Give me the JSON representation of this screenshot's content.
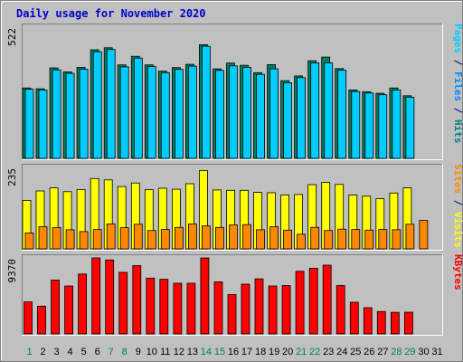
{
  "chart_data": {
    "type": "bar",
    "title": "Daily usage for November 2020",
    "x": [
      "1",
      "2",
      "3",
      "4",
      "5",
      "6",
      "7",
      "8",
      "9",
      "10",
      "11",
      "12",
      "13",
      "14",
      "15",
      "16",
      "17",
      "18",
      "19",
      "20",
      "21",
      "22",
      "23",
      "24",
      "25",
      "26",
      "27",
      "28",
      "29",
      "30",
      "31"
    ],
    "weekend_days": [
      "1",
      "7",
      "8",
      "14",
      "15",
      "21",
      "22",
      "28",
      "29"
    ],
    "panels": [
      {
        "name": "hits-files-pages",
        "ymax": 522,
        "ymax_label": "522",
        "side_label_parts": [
          {
            "text": "Pages",
            "color": "#00ccff"
          },
          {
            "text": " / ",
            "color": "#000080"
          },
          {
            "text": "Files",
            "color": "#0088ff"
          },
          {
            "text": " / ",
            "color": "#000080"
          },
          {
            "text": "Hits",
            "color": "#008080"
          }
        ],
        "series": [
          {
            "name": "Hits",
            "color": "#008060",
            "values": [
              280,
              277,
              360,
              344,
              362,
              432,
              440,
              372,
              406,
              372,
              347,
              361,
              374,
              452,
              356,
              379,
              370,
              341,
              373,
              309,
              328,
              388,
              403,
              357,
              272,
              265,
              259,
              280,
              249,
              0,
              0
            ]
          },
          {
            "name": "Files",
            "color": "#00ccff",
            "values": [
              275,
              272,
              352,
              338,
              355,
              424,
              433,
              364,
              399,
              365,
              341,
              354,
              367,
              446,
              350,
              368,
              362,
              334,
              356,
              301,
              321,
              380,
              380,
              351,
              266,
              260,
              253,
              272,
              243,
              0,
              0
            ]
          }
        ]
      },
      {
        "name": "visits-sites",
        "ymax": 235,
        "ymax_label": "235",
        "side_label_parts": [
          {
            "text": "Sites",
            "color": "#ff8800"
          },
          {
            "text": " / ",
            "color": "#000080"
          },
          {
            "text": "Visits",
            "color": "#ffff00"
          }
        ],
        "series": [
          {
            "name": "Visits",
            "color": "#ffff00",
            "values": [
              140,
              167,
              176,
              165,
              171,
              203,
              199,
              180,
              190,
              171,
              175,
              172,
              188,
              226,
              170,
              169,
              169,
              163,
              162,
              155,
              157,
              185,
              192,
              186,
              155,
              152,
              145,
              161,
              176,
              0,
              0
            ]
          },
          {
            "name": "Sites",
            "color": "#ff8800",
            "values": [
              46,
              64,
              61,
              55,
              50,
              56,
              72,
              61,
              71,
              53,
              56,
              62,
              72,
              66,
              62,
              69,
              70,
              55,
              64,
              54,
              42,
              62,
              53,
              57,
              56,
              54,
              56,
              55,
              71,
              82,
              0
            ]
          }
        ]
      },
      {
        "name": "kbytes",
        "ymax": 9370,
        "ymax_label": "9370",
        "side_label_parts": [
          {
            "text": "KBytes",
            "color": "#ff0000"
          }
        ],
        "series": [
          {
            "name": "KBytes",
            "color": "#ff0000",
            "values": [
              3950,
              3430,
              6640,
              5910,
              7380,
              9370,
              9130,
              7600,
              8420,
              6880,
              6740,
              6250,
              6250,
              9370,
              6420,
              4850,
              6140,
              6790,
              5910,
              5970,
              7720,
              8100,
              8480,
              5970,
              3900,
              3240,
              2770,
              2670,
              2680,
              0,
              0
            ]
          }
        ]
      }
    ],
    "grid": false
  }
}
